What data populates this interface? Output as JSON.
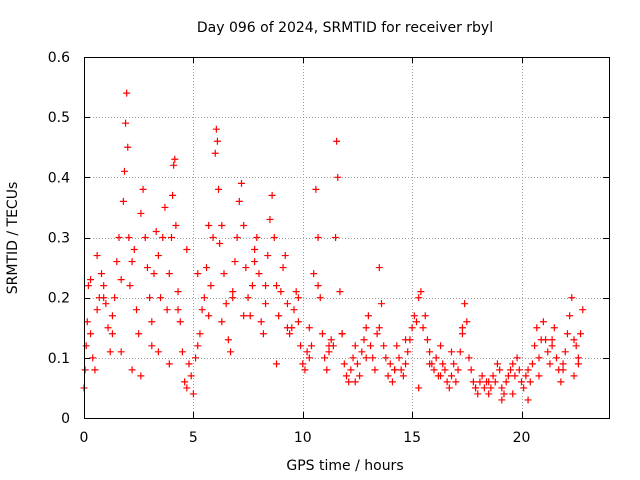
{
  "chart_data": {
    "type": "scatter",
    "title": "Day 096 of 2024, SRMTID for receiver rbyl",
    "xlabel": "GPS time / hours",
    "ylabel": "SRMTID / TECUs",
    "xlim": [
      0,
      24
    ],
    "ylim": [
      0,
      0.6
    ],
    "grid": true,
    "marker": "+",
    "colors": {
      "series": "#ff0000",
      "grid": "#a0a0a0",
      "axis": "#000000"
    },
    "x_ticks": [
      {
        "value": 0,
        "label": "0"
      },
      {
        "value": 5,
        "label": "5"
      },
      {
        "value": 10,
        "label": "10"
      },
      {
        "value": 15,
        "label": "15"
      },
      {
        "value": 20,
        "label": "20"
      }
    ],
    "y_ticks": [
      {
        "value": 0,
        "label": "0"
      },
      {
        "value": 0.1,
        "label": "0.1"
      },
      {
        "value": 0.2,
        "label": "0.2"
      },
      {
        "value": 0.3,
        "label": "0.3"
      },
      {
        "value": 0.4,
        "label": "0.4"
      },
      {
        "value": 0.5,
        "label": "0.5"
      },
      {
        "value": 0.6,
        "label": "0.6"
      }
    ],
    "series": [
      {
        "name": "SRMTID",
        "x": [
          0.0,
          0.05,
          0.1,
          0.15,
          0.2,
          0.3,
          0.4,
          0.5,
          0.6,
          0.7,
          0.8,
          0.9,
          1.0,
          1.1,
          1.2,
          1.3,
          1.4,
          1.5,
          1.6,
          1.7,
          1.8,
          1.85,
          1.9,
          1.95,
          2.0,
          2.05,
          2.1,
          2.2,
          2.3,
          2.4,
          2.5,
          2.6,
          2.7,
          2.8,
          2.9,
          3.0,
          3.1,
          3.2,
          3.3,
          3.4,
          3.5,
          3.6,
          3.7,
          3.8,
          3.9,
          4.0,
          4.05,
          4.1,
          4.15,
          4.2,
          4.3,
          4.4,
          4.5,
          4.6,
          4.7,
          4.8,
          4.9,
          5.0,
          5.1,
          5.2,
          5.3,
          5.4,
          5.5,
          5.6,
          5.7,
          5.8,
          5.9,
          6.0,
          6.05,
          6.1,
          6.15,
          6.2,
          6.3,
          6.4,
          6.5,
          6.6,
          6.7,
          6.8,
          6.9,
          7.0,
          7.1,
          7.2,
          7.3,
          7.4,
          7.5,
          7.6,
          7.7,
          7.8,
          7.9,
          8.0,
          8.1,
          8.2,
          8.3,
          8.4,
          8.5,
          8.6,
          8.7,
          8.8,
          8.9,
          9.0,
          9.1,
          9.2,
          9.3,
          9.4,
          9.5,
          9.6,
          9.7,
          9.8,
          9.9,
          10.0,
          10.1,
          10.2,
          10.3,
          10.4,
          10.5,
          10.6,
          10.7,
          10.8,
          10.9,
          11.0,
          11.1,
          11.2,
          11.3,
          11.4,
          11.5,
          11.55,
          11.6,
          11.7,
          11.8,
          11.9,
          12.0,
          12.1,
          12.2,
          12.3,
          12.4,
          12.5,
          12.6,
          12.7,
          12.8,
          12.9,
          13.0,
          13.1,
          13.2,
          13.3,
          13.4,
          13.5,
          13.6,
          13.7,
          13.8,
          13.9,
          14.0,
          14.1,
          14.2,
          14.3,
          14.4,
          14.5,
          14.6,
          14.7,
          14.8,
          14.9,
          15.0,
          15.1,
          15.2,
          15.3,
          15.4,
          15.5,
          15.6,
          15.7,
          15.8,
          15.9,
          16.0,
          16.1,
          16.2,
          16.3,
          16.4,
          16.5,
          16.6,
          16.7,
          16.8,
          16.9,
          17.0,
          17.1,
          17.2,
          17.3,
          17.4,
          17.5,
          17.6,
          17.7,
          17.8,
          17.9,
          18.0,
          18.1,
          18.2,
          18.3,
          18.4,
          18.5,
          18.6,
          18.7,
          18.8,
          18.9,
          19.0,
          19.1,
          19.2,
          19.3,
          19.4,
          19.5,
          19.6,
          19.7,
          19.8,
          19.9,
          20.0,
          20.1,
          20.2,
          20.3,
          20.4,
          20.5,
          20.6,
          20.7,
          20.8,
          20.9,
          21.0,
          21.1,
          21.2,
          21.3,
          21.4,
          21.5,
          21.6,
          21.7,
          21.8,
          21.9,
          22.0,
          22.1,
          22.2,
          22.3,
          22.4,
          22.5,
          22.6,
          22.7,
          22.8,
          0.3,
          0.6,
          0.9,
          1.3,
          1.7,
          2.2,
          2.6,
          3.1,
          3.4,
          3.9,
          4.3,
          4.7,
          5.2,
          5.7,
          6.3,
          6.8,
          7.3,
          7.8,
          8.3,
          8.8,
          9.3,
          9.8,
          10.3,
          10.7,
          11.2,
          11.8,
          12.4,
          12.9,
          13.5,
          14.2,
          14.7,
          15.3,
          15.8,
          16.3,
          16.8,
          17.3,
          17.9,
          18.5,
          19.1,
          19.6,
          20.3,
          20.8,
          21.4,
          21.9,
          22.4,
          22.6
        ],
        "y": [
          0.05,
          0.08,
          0.12,
          0.16,
          0.22,
          0.14,
          0.1,
          0.08,
          0.18,
          0.2,
          0.24,
          0.22,
          0.19,
          0.15,
          0.11,
          0.17,
          0.2,
          0.26,
          0.3,
          0.23,
          0.36,
          0.41,
          0.49,
          0.54,
          0.45,
          0.3,
          0.22,
          0.26,
          0.28,
          0.18,
          0.14,
          0.34,
          0.38,
          0.3,
          0.25,
          0.2,
          0.12,
          0.24,
          0.31,
          0.27,
          0.2,
          0.3,
          0.35,
          0.18,
          0.24,
          0.3,
          0.37,
          0.42,
          0.43,
          0.32,
          0.21,
          0.16,
          0.11,
          0.06,
          0.05,
          0.09,
          0.07,
          0.04,
          0.1,
          0.12,
          0.14,
          0.18,
          0.2,
          0.25,
          0.17,
          0.22,
          0.3,
          0.44,
          0.48,
          0.46,
          0.38,
          0.29,
          0.32,
          0.24,
          0.19,
          0.13,
          0.11,
          0.2,
          0.26,
          0.3,
          0.36,
          0.39,
          0.32,
          0.25,
          0.2,
          0.17,
          0.22,
          0.28,
          0.3,
          0.24,
          0.16,
          0.14,
          0.19,
          0.27,
          0.33,
          0.37,
          0.3,
          0.22,
          0.17,
          0.21,
          0.25,
          0.27,
          0.19,
          0.14,
          0.15,
          0.18,
          0.21,
          0.16,
          0.12,
          0.09,
          0.08,
          0.11,
          0.1,
          0.12,
          0.24,
          0.38,
          0.3,
          0.2,
          0.14,
          0.1,
          0.08,
          0.11,
          0.13,
          0.12,
          0.3,
          0.46,
          0.4,
          0.21,
          0.14,
          0.09,
          0.07,
          0.06,
          0.08,
          0.1,
          0.12,
          0.09,
          0.07,
          0.11,
          0.13,
          0.15,
          0.17,
          0.12,
          0.1,
          0.08,
          0.14,
          0.25,
          0.19,
          0.12,
          0.1,
          0.07,
          0.09,
          0.06,
          0.08,
          0.12,
          0.1,
          0.08,
          0.07,
          0.09,
          0.11,
          0.13,
          0.15,
          0.17,
          0.16,
          0.2,
          0.21,
          0.15,
          0.17,
          0.13,
          0.11,
          0.09,
          0.08,
          0.1,
          0.07,
          0.12,
          0.09,
          0.08,
          0.06,
          0.05,
          0.07,
          0.09,
          0.06,
          0.08,
          0.11,
          0.15,
          0.19,
          0.16,
          0.1,
          0.08,
          0.06,
          0.05,
          0.04,
          0.06,
          0.07,
          0.05,
          0.06,
          0.04,
          0.05,
          0.07,
          0.06,
          0.09,
          0.08,
          0.05,
          0.04,
          0.06,
          0.07,
          0.08,
          0.09,
          0.07,
          0.1,
          0.08,
          0.06,
          0.05,
          0.07,
          0.03,
          0.06,
          0.09,
          0.12,
          0.15,
          0.1,
          0.13,
          0.16,
          0.13,
          0.11,
          0.09,
          0.12,
          0.15,
          0.1,
          0.08,
          0.06,
          0.08,
          0.11,
          0.14,
          0.17,
          0.2,
          0.13,
          0.12,
          0.09,
          0.14,
          0.18,
          0.23,
          0.27,
          0.2,
          0.14,
          0.11,
          0.08,
          0.07,
          0.16,
          0.11,
          0.09,
          0.18,
          0.28,
          0.24,
          0.32,
          0.16,
          0.21,
          0.17,
          0.26,
          0.22,
          0.09,
          0.15,
          0.2,
          0.15,
          0.22,
          0.12,
          0.14,
          0.06,
          0.1,
          0.15,
          0.08,
          0.13,
          0.05,
          0.09,
          0.07,
          0.11,
          0.14,
          0.05,
          0.06,
          0.03,
          0.04,
          0.08,
          0.07,
          0.13,
          0.09,
          0.07,
          0.1
        ]
      }
    ]
  }
}
